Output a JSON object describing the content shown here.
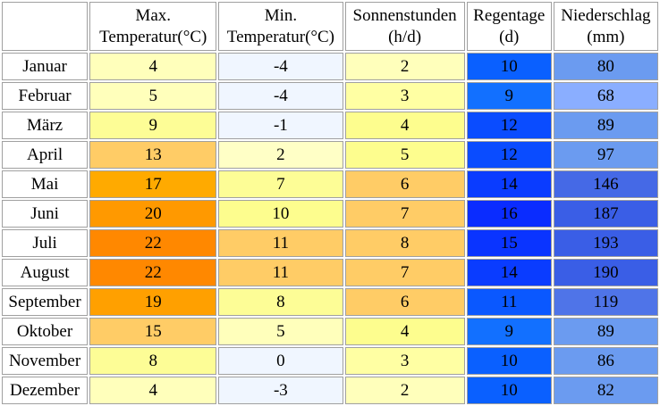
{
  "headers": [
    {
      "line1": "Max.",
      "line2": "Temperatur(°C)"
    },
    {
      "line1": "Min.",
      "line2": "Temperatur(°C)"
    },
    {
      "line1": "Sonnenstunden",
      "line2": "(h/d)"
    },
    {
      "line1": "Regentage",
      "line2": "(d)"
    },
    {
      "line1": "Niederschlag",
      "line2": "(mm)"
    }
  ],
  "rows": [
    {
      "month": "Januar",
      "max": "4",
      "min": "-4",
      "sun": "2",
      "rain_days": "10",
      "precip": "80",
      "colors": {
        "max": "#ffffbb",
        "min": "#f0f6ff",
        "sun": "#ffffbb",
        "rain_days": "#0a60ff",
        "precip": "#6b9bf0"
      }
    },
    {
      "month": "Februar",
      "max": "5",
      "min": "-4",
      "sun": "3",
      "rain_days": "9",
      "precip": "68",
      "colors": {
        "max": "#ffffbb",
        "min": "#f0f6ff",
        "sun": "#ffffa3",
        "rain_days": "#1270ff",
        "precip": "#8aaeff"
      }
    },
    {
      "month": "März",
      "max": "9",
      "min": "-1",
      "sun": "4",
      "rain_days": "12",
      "precip": "89",
      "colors": {
        "max": "#fdfd96",
        "min": "#f0f6ff",
        "sun": "#fdfd8e",
        "rain_days": "#0a4cff",
        "precip": "#6b9bf0"
      }
    },
    {
      "month": "April",
      "max": "13",
      "min": "2",
      "sun": "5",
      "rain_days": "12",
      "precip": "97",
      "colors": {
        "max": "#ffcc66",
        "min": "#ffffc6",
        "sun": "#fdfd8e",
        "rain_days": "#0a4cff",
        "precip": "#6b9bf0"
      }
    },
    {
      "month": "Mai",
      "max": "17",
      "min": "7",
      "sun": "6",
      "rain_days": "14",
      "precip": "146",
      "colors": {
        "max": "#ffaa00",
        "min": "#fdfd96",
        "sun": "#ffcc66",
        "rain_days": "#0a3cff",
        "precip": "#4569e6"
      }
    },
    {
      "month": "Juni",
      "max": "20",
      "min": "10",
      "sun": "7",
      "rain_days": "16",
      "precip": "187",
      "colors": {
        "max": "#ff9900",
        "min": "#fdfd8e",
        "sun": "#ffcc66",
        "rain_days": "#0a2cff",
        "precip": "#3a5ee6"
      }
    },
    {
      "month": "Juli",
      "max": "22",
      "min": "11",
      "sun": "8",
      "rain_days": "15",
      "precip": "193",
      "colors": {
        "max": "#ff8800",
        "min": "#ffcc66",
        "sun": "#ffcc66",
        "rain_days": "#0a34ff",
        "precip": "#3a5ee6"
      }
    },
    {
      "month": "August",
      "max": "22",
      "min": "11",
      "sun": "7",
      "rain_days": "14",
      "precip": "190",
      "colors": {
        "max": "#ff8800",
        "min": "#ffcc66",
        "sun": "#ffcc66",
        "rain_days": "#0a3cff",
        "precip": "#3a5ee6"
      }
    },
    {
      "month": "September",
      "max": "19",
      "min": "8",
      "sun": "6",
      "rain_days": "11",
      "precip": "119",
      "colors": {
        "max": "#ffa000",
        "min": "#fdfd96",
        "sun": "#ffcc66",
        "rain_days": "#0a58ff",
        "precip": "#4f74e8"
      }
    },
    {
      "month": "Oktober",
      "max": "15",
      "min": "5",
      "sun": "4",
      "rain_days": "9",
      "precip": "89",
      "colors": {
        "max": "#ffcc66",
        "min": "#ffffbb",
        "sun": "#fdfd8e",
        "rain_days": "#1270ff",
        "precip": "#6b9bf0"
      }
    },
    {
      "month": "November",
      "max": "8",
      "min": "0",
      "sun": "3",
      "rain_days": "10",
      "precip": "86",
      "colors": {
        "max": "#fdfd96",
        "min": "#f0f6ff",
        "sun": "#ffffa3",
        "rain_days": "#0a60ff",
        "precip": "#6b9bf0"
      }
    },
    {
      "month": "Dezember",
      "max": "4",
      "min": "-3",
      "sun": "2",
      "rain_days": "10",
      "precip": "82",
      "colors": {
        "max": "#ffffbb",
        "min": "#f0f6ff",
        "sun": "#ffffbb",
        "rain_days": "#0a60ff",
        "precip": "#6b9bf0"
      }
    }
  ]
}
